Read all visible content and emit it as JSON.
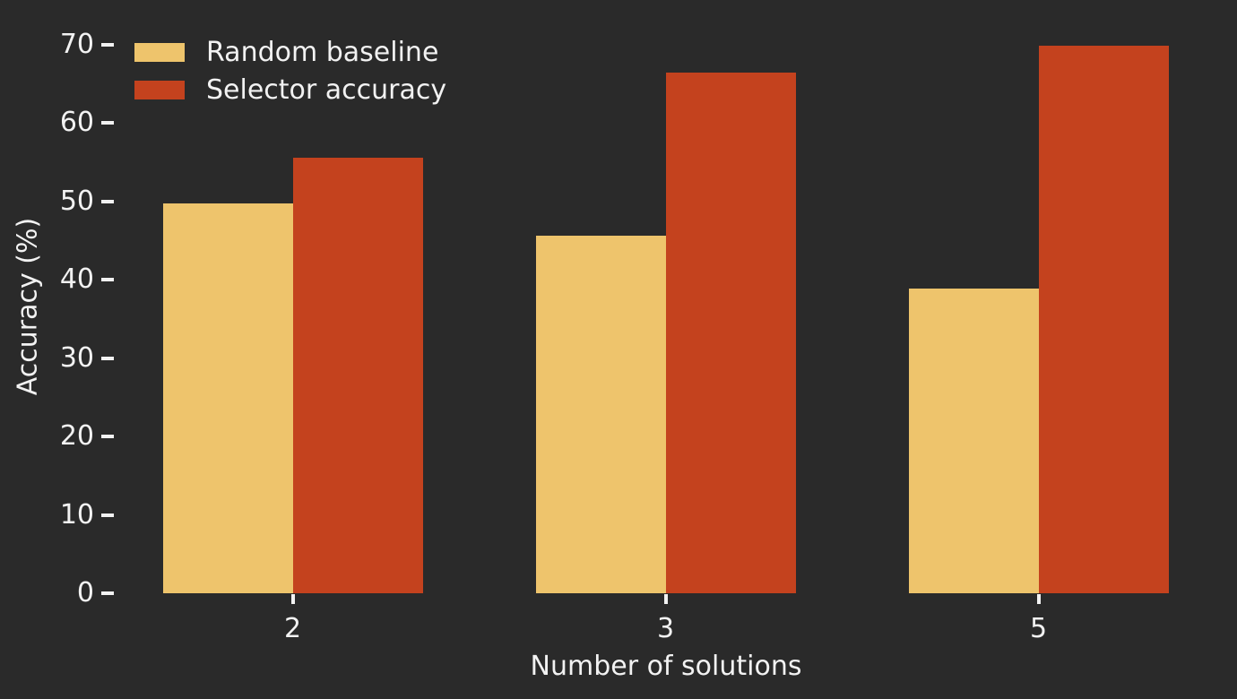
{
  "chart_data": {
    "type": "bar",
    "title": "",
    "xlabel": "Number of solutions",
    "ylabel": "Accuracy (%)",
    "categories": [
      "2",
      "3",
      "5"
    ],
    "series": [
      {
        "name": "Random baseline",
        "color": "#eec46c",
        "values": [
          49.7,
          45.6,
          38.9
        ]
      },
      {
        "name": "Selector accuracy",
        "color": "#c4421e",
        "values": [
          55.5,
          66.4,
          69.8
        ]
      }
    ],
    "ylim": [
      0,
      70
    ],
    "yticks": [
      0,
      10,
      20,
      30,
      40,
      50,
      60,
      70
    ],
    "grid": false,
    "legend_position": "upper-left",
    "background_color": "#2a2a2a",
    "text_color": "#f2f2f2"
  }
}
